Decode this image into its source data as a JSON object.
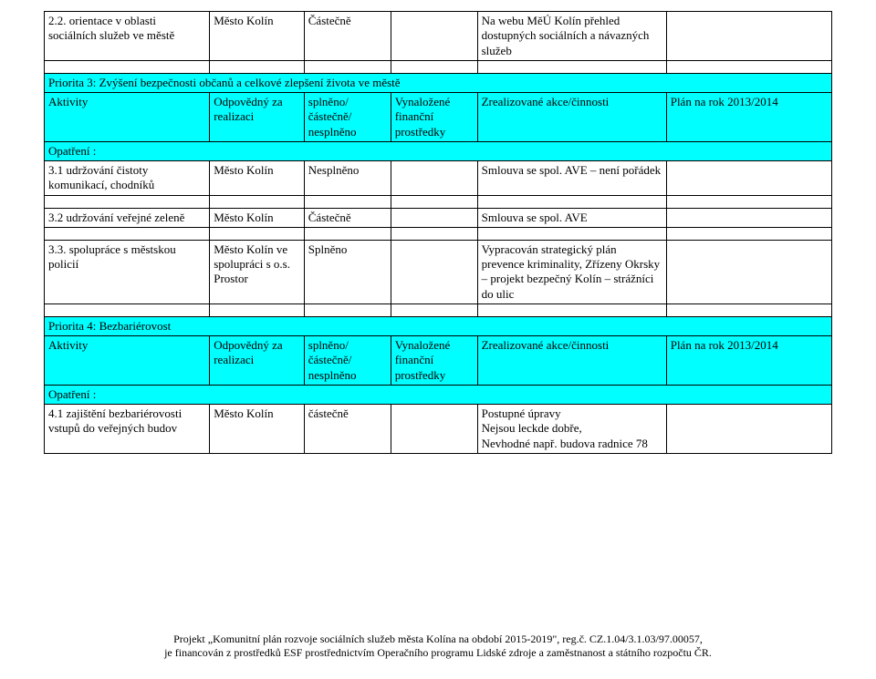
{
  "colors": {
    "header_bg": "#00ffff",
    "border": "#000000",
    "text": "#000000",
    "page_bg": "#ffffff"
  },
  "row22": {
    "c1": "2.2. orientace v oblasti sociálních služeb ve městě",
    "c2": "Město Kolín",
    "c3": "Částečně",
    "c4": "",
    "c5": "Na webu MěÚ Kolín přehled dostupných sociálních a návazných služeb",
    "c6": ""
  },
  "priorita3": {
    "title": "Priorita 3: Zvýšení bezpečnosti občanů a celkové zlepšení života ve městě",
    "header": {
      "c1": "Aktivity",
      "c2": "Odpovědný za realizaci",
      "c3": "splněno/ částečně/ nesplněno",
      "c4": "Vynaložené finanční prostředky",
      "c5": "Zrealizované akce/činnosti",
      "c6": "Plán na rok 2013/2014"
    },
    "opatreni": "Opatření :",
    "r31": {
      "c1": "3.1 udržování čistoty komunikací, chodníků",
      "c2": "Město Kolín",
      "c3": "Nesplněno",
      "c4": "",
      "c5": "Smlouva se spol. AVE – není pořádek",
      "c6": ""
    },
    "r32": {
      "c1": "3.2 udržování veřejné zeleně",
      "c2": "Město Kolín",
      "c3": "Částečně",
      "c4": "",
      "c5": "Smlouva se spol. AVE",
      "c6": ""
    },
    "r33": {
      "c1": "3.3. spolupráce s městskou policií",
      "c2": "Město Kolín ve spolupráci s o.s. Prostor",
      "c3": "Splněno",
      "c4": "",
      "c5": "Vypracován strategický plán prevence kriminality, Zřízeny Okrsky – projekt bezpečný Kolín – strážníci do ulic",
      "c6": ""
    }
  },
  "priorita4": {
    "title": "Priorita 4: Bezbariérovost",
    "header": {
      "c1": "Aktivity",
      "c2": "Odpovědný za realizaci",
      "c3": "splněno/ částečně/ nesplněno",
      "c4": "Vynaložené finanční prostředky",
      "c5": "Zrealizované akce/činnosti",
      "c6": "Plán na rok 2013/2014"
    },
    "opatreni": "Opatření :",
    "r41": {
      "c1": "4.1 zajištění bezbariérovosti vstupů do veřejných budov",
      "c2": "Město Kolín",
      "c3": "částečně",
      "c4": "",
      "c5": "Postupné úpravy\nNejsou leckde dobře,\nNevhodné např. budova radnice 78",
      "c6": ""
    }
  },
  "footer": {
    "line1": "Projekt „Komunitní plán rozvoje sociálních služeb města Kolína na období 2015-2019\", reg.č.  CZ.1.04/3.1.03/97.00057,",
    "line2": "je financován z prostředků ESF prostřednictvím Operačního programu Lidské zdroje a zaměstnanost a státního rozpočtu ČR."
  }
}
